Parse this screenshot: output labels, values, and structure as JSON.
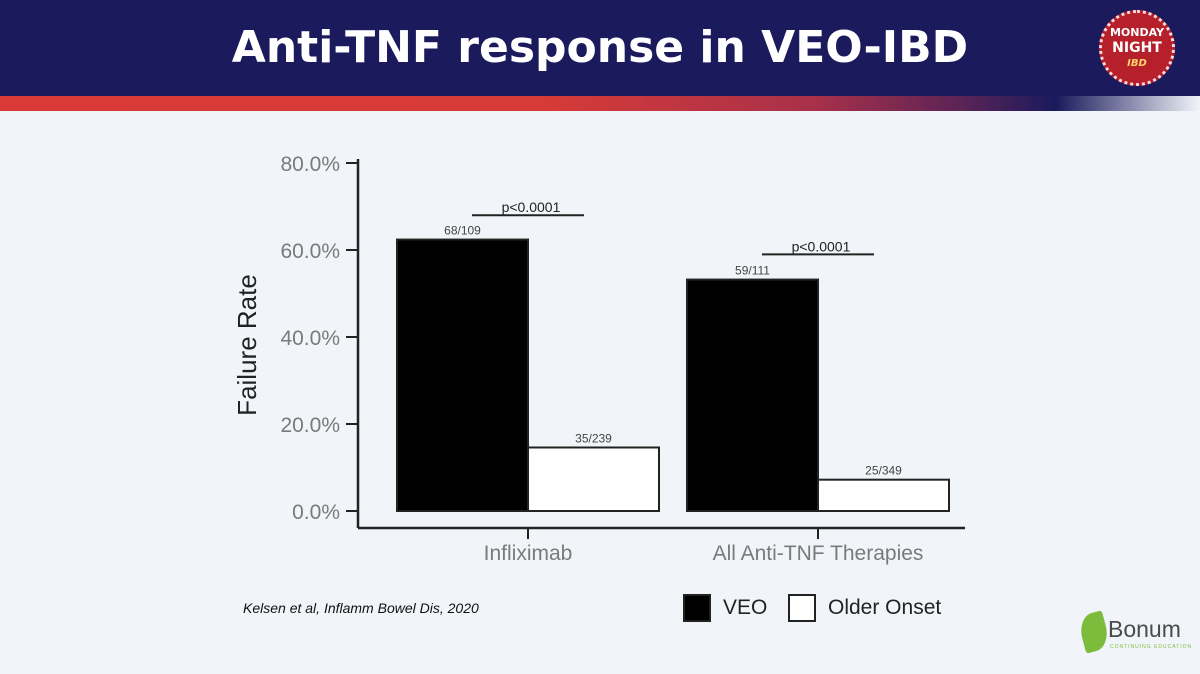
{
  "slide": {
    "title": "Anti-TNF response in VEO-IBD",
    "citation": "Kelsen et al, Inflamm Bowel Dis, 2020",
    "logo_top": {
      "line1": "MONDAY",
      "line2": "NIGHT",
      "line3": "IBD"
    },
    "logo_bottom": {
      "name": "Bonum",
      "tagline": "CONTINUING EDUCATION"
    }
  },
  "colors": {
    "header_bg": "#1a1a5c",
    "accent_red": "#d93a36",
    "veo_fill": "#000000",
    "older_onset_fill": "#ffffff",
    "bonum_green": "#7dbb3c"
  },
  "chart_data": {
    "type": "bar",
    "title": "",
    "xlabel": "",
    "ylabel": "Failure Rate",
    "ylim": [
      0,
      80
    ],
    "yticks": [
      "0.0%",
      "20.0%",
      "40.0%",
      "60.0%",
      "80.0%"
    ],
    "ytick_values": [
      0,
      20,
      40,
      60,
      80
    ],
    "grid": false,
    "legend_position": "bottom-right",
    "categories": [
      "Infliximab",
      "All Anti-TNF Therapies"
    ],
    "series": [
      {
        "name": "VEO",
        "color": "#000000",
        "values": [
          62.4,
          53.2
        ],
        "labels": [
          "68/109",
          "59/111"
        ]
      },
      {
        "name": "Older Onset",
        "color": "#ffffff",
        "values": [
          14.6,
          7.2
        ],
        "labels": [
          "35/239",
          "25/349"
        ]
      }
    ],
    "annotations": [
      {
        "category": "Infliximab",
        "text": "p<0.0001",
        "level": 68
      },
      {
        "category": "All Anti-TNF Therapies",
        "text": "p<0.0001",
        "level": 59
      }
    ]
  }
}
